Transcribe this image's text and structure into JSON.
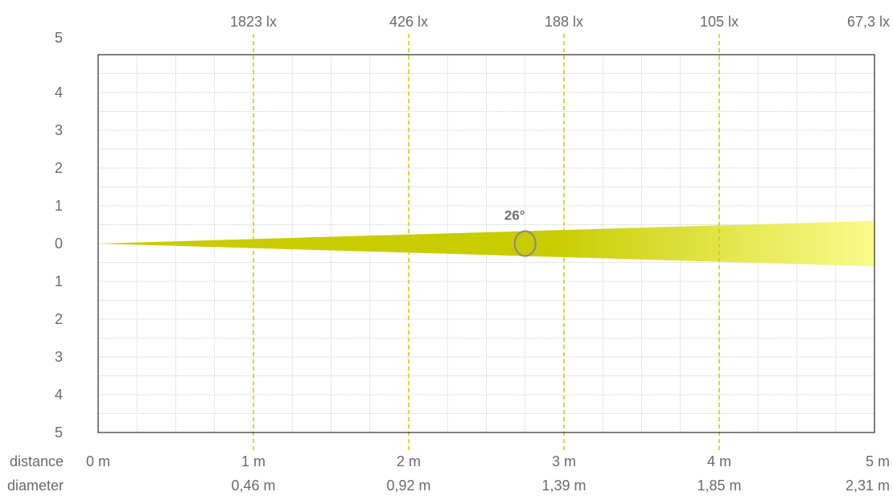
{
  "chart_data": {
    "type": "beam-angle",
    "beam_angle_label": "26°",
    "row_labels": {
      "distance": "distance",
      "diameter": "diameter"
    },
    "y_tick_labels": [
      "5",
      "4",
      "3",
      "2",
      "1",
      "0",
      "1",
      "2",
      "3",
      "4",
      "5"
    ],
    "x_range": [
      0,
      5
    ],
    "y_range": [
      -5,
      5
    ],
    "x_minor_step": 0.25,
    "y_minor_step": 0.5,
    "beam_half_width_at_5m": 0.6,
    "marker_distance": 2.75,
    "marker_half_height": 0.33,
    "origin_label": "0 m",
    "distances": [
      {
        "distance": 1,
        "distance_label": "1 m",
        "diameter_label": "0,46 m",
        "lux_label": "1823 lx"
      },
      {
        "distance": 2,
        "distance_label": "2 m",
        "diameter_label": "0,92 m",
        "lux_label": "426 lx"
      },
      {
        "distance": 3,
        "distance_label": "3 m",
        "diameter_label": "1,39 m",
        "lux_label": "188 lx"
      },
      {
        "distance": 4,
        "distance_label": "4 m",
        "diameter_label": "1,85 m",
        "lux_label": "105 lx"
      },
      {
        "distance": 5,
        "distance_label": "5 m",
        "diameter_label": "2,31 m",
        "lux_label": "67,3 lx"
      }
    ],
    "colors": {
      "beam_dark": "#c8cc00",
      "beam_light": "#fafa8c",
      "guide_line": "#d6cc00",
      "grid": "#d0d0d0",
      "frame": "#000000",
      "marker": "#888888",
      "text": "#6b6b6b"
    }
  }
}
